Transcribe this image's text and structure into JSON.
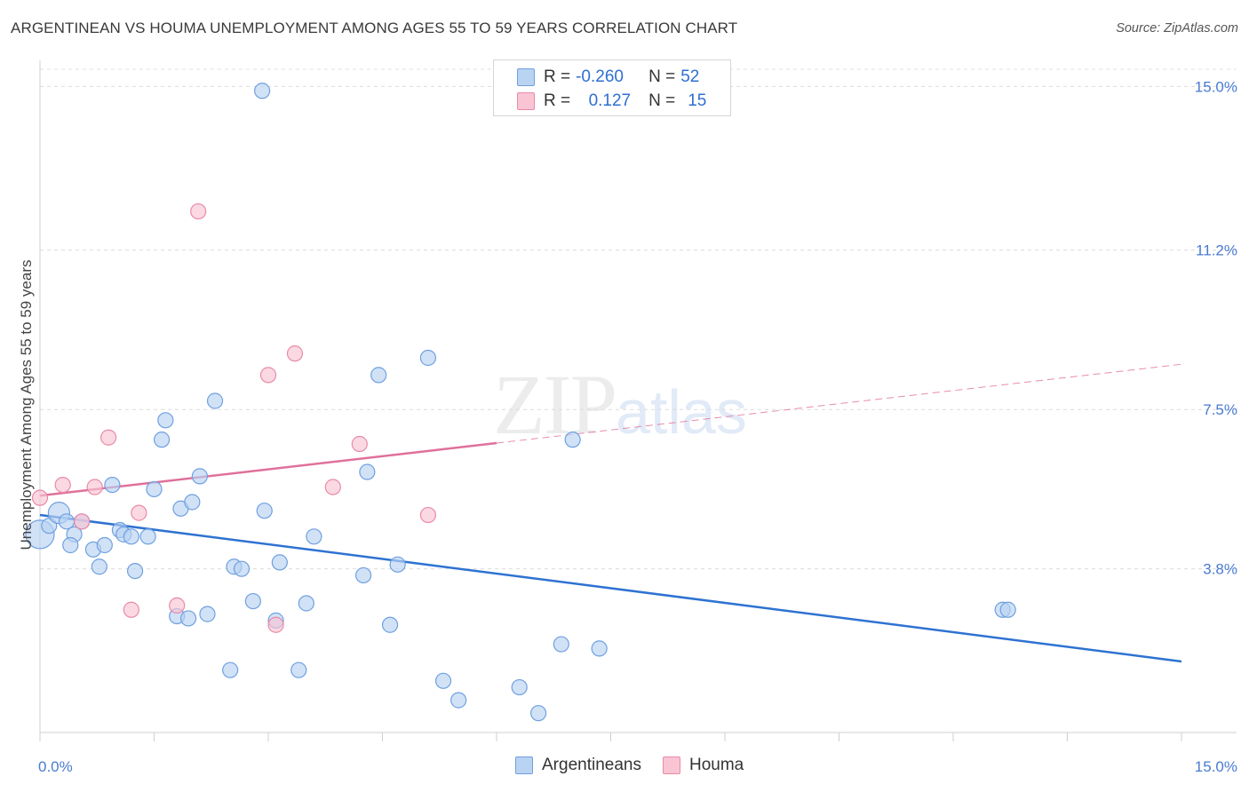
{
  "title": "ARGENTINEAN VS HOUMA UNEMPLOYMENT AMONG AGES 55 TO 59 YEARS CORRELATION CHART",
  "source": "Source: ZipAtlas.com",
  "watermark": {
    "zip": "ZIP",
    "atlas": "atlas"
  },
  "legend": {
    "r_label": "R =",
    "n_label": "N =",
    "rows": [
      {
        "name": "Argentineans",
        "r": "-0.260",
        "n": "52",
        "fill": "#b9d3f3",
        "stroke": "#6fa0df"
      },
      {
        "name": "Houma",
        "r": "0.127",
        "n": "15",
        "fill": "#f9c5d4",
        "stroke": "#e98aa7"
      }
    ]
  },
  "chart_data": {
    "type": "scatter",
    "title": "ARGENTINEAN VS HOUMA UNEMPLOYMENT AMONG AGES 55 TO 59 YEARS CORRELATION CHART",
    "xlabel": "",
    "ylabel": "Unemployment Among Ages 55 to 59 years",
    "xlim": [
      0,
      15
    ],
    "ylim": [
      0,
      15.4
    ],
    "y_ticks": [
      3.8,
      7.5,
      11.2,
      15.0
    ],
    "y_tick_labels": [
      "3.8%",
      "7.5%",
      "11.2%",
      "15.0%"
    ],
    "x_tick_labels": [
      "0.0%",
      "15.0%"
    ],
    "series": [
      {
        "name": "Argentineans",
        "color": "#6fa0df",
        "fill": "#b9d3f3",
        "points": [
          [
            0.0,
            4.6
          ],
          [
            0.12,
            4.8
          ],
          [
            0.25,
            5.1
          ],
          [
            0.35,
            4.9
          ],
          [
            0.45,
            4.6
          ],
          [
            0.55,
            4.9
          ],
          [
            0.4,
            4.35
          ],
          [
            0.7,
            4.25
          ],
          [
            0.85,
            4.35
          ],
          [
            0.78,
            3.85
          ],
          [
            1.05,
            4.7
          ],
          [
            1.1,
            4.6
          ],
          [
            1.2,
            4.55
          ],
          [
            1.25,
            3.75
          ],
          [
            1.42,
            4.55
          ],
          [
            0.95,
            5.75
          ],
          [
            1.5,
            5.65
          ],
          [
            1.6,
            6.8
          ],
          [
            1.65,
            7.25
          ],
          [
            1.8,
            2.7
          ],
          [
            1.85,
            5.2
          ],
          [
            1.95,
            2.65
          ],
          [
            2.0,
            5.35
          ],
          [
            2.1,
            5.95
          ],
          [
            2.2,
            2.75
          ],
          [
            2.3,
            7.7
          ],
          [
            2.5,
            1.45
          ],
          [
            2.55,
            3.85
          ],
          [
            2.65,
            3.8
          ],
          [
            2.8,
            3.05
          ],
          [
            2.92,
            14.9
          ],
          [
            2.95,
            5.15
          ],
          [
            3.1,
            2.6
          ],
          [
            3.15,
            3.95
          ],
          [
            3.4,
            1.45
          ],
          [
            3.5,
            3.0
          ],
          [
            3.6,
            4.55
          ],
          [
            4.25,
            3.65
          ],
          [
            4.3,
            6.05
          ],
          [
            4.45,
            8.3
          ],
          [
            4.6,
            2.5
          ],
          [
            4.7,
            3.9
          ],
          [
            5.1,
            8.7
          ],
          [
            5.3,
            1.2
          ],
          [
            5.5,
            0.75
          ],
          [
            6.3,
            1.05
          ],
          [
            6.55,
            0.45
          ],
          [
            6.85,
            2.05
          ],
          [
            7.0,
            6.8
          ],
          [
            7.35,
            1.95
          ],
          [
            12.65,
            2.85
          ],
          [
            12.72,
            2.85
          ]
        ],
        "fit": {
          "x0": 0,
          "y0": 5.05,
          "x1": 15,
          "y1": 1.65
        }
      },
      {
        "name": "Houma",
        "color": "#e98aa7",
        "fill": "#f9c5d4",
        "points": [
          [
            0.0,
            5.45
          ],
          [
            0.3,
            5.75
          ],
          [
            0.55,
            4.9
          ],
          [
            0.72,
            5.7
          ],
          [
            0.9,
            6.85
          ],
          [
            1.2,
            2.85
          ],
          [
            1.3,
            5.1
          ],
          [
            1.8,
            2.95
          ],
          [
            2.08,
            12.1
          ],
          [
            3.0,
            8.3
          ],
          [
            3.1,
            2.5
          ],
          [
            3.35,
            8.8
          ],
          [
            3.85,
            5.7
          ],
          [
            4.2,
            6.7
          ],
          [
            5.1,
            5.05
          ]
        ],
        "fit": {
          "x0": 0,
          "y0": 5.5,
          "x1": 15,
          "y1": 8.55,
          "solid_until": 6.0
        }
      }
    ]
  }
}
